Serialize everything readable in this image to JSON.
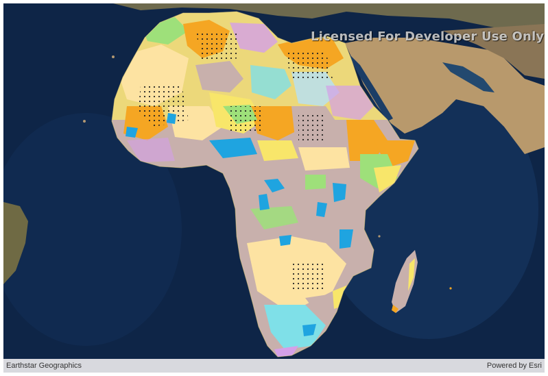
{
  "map": {
    "watermark": "Licensed For Developer Use Only",
    "attribution": "Earthstar Geographics",
    "powered_by": "Powered by Esri",
    "basemap": "satellite-imagery",
    "operational_layer": "geology-of-africa",
    "colors": {
      "ocean": "#0e2547",
      "ocean_shallow": "#1d3e6b",
      "desert_land": "#b39872",
      "unit_mauve": "#c8b0ac",
      "unit_yellow": "#f8e66a",
      "unit_orange": "#f5a623",
      "unit_pale_yellow": "#fde3a2",
      "unit_green": "#9ee07a",
      "unit_blue": "#1fa4e0",
      "unit_lilac": "#d4a0e8",
      "unit_cyan": "#7fe0e8",
      "attribution_bar": "#e1e1e4"
    }
  }
}
